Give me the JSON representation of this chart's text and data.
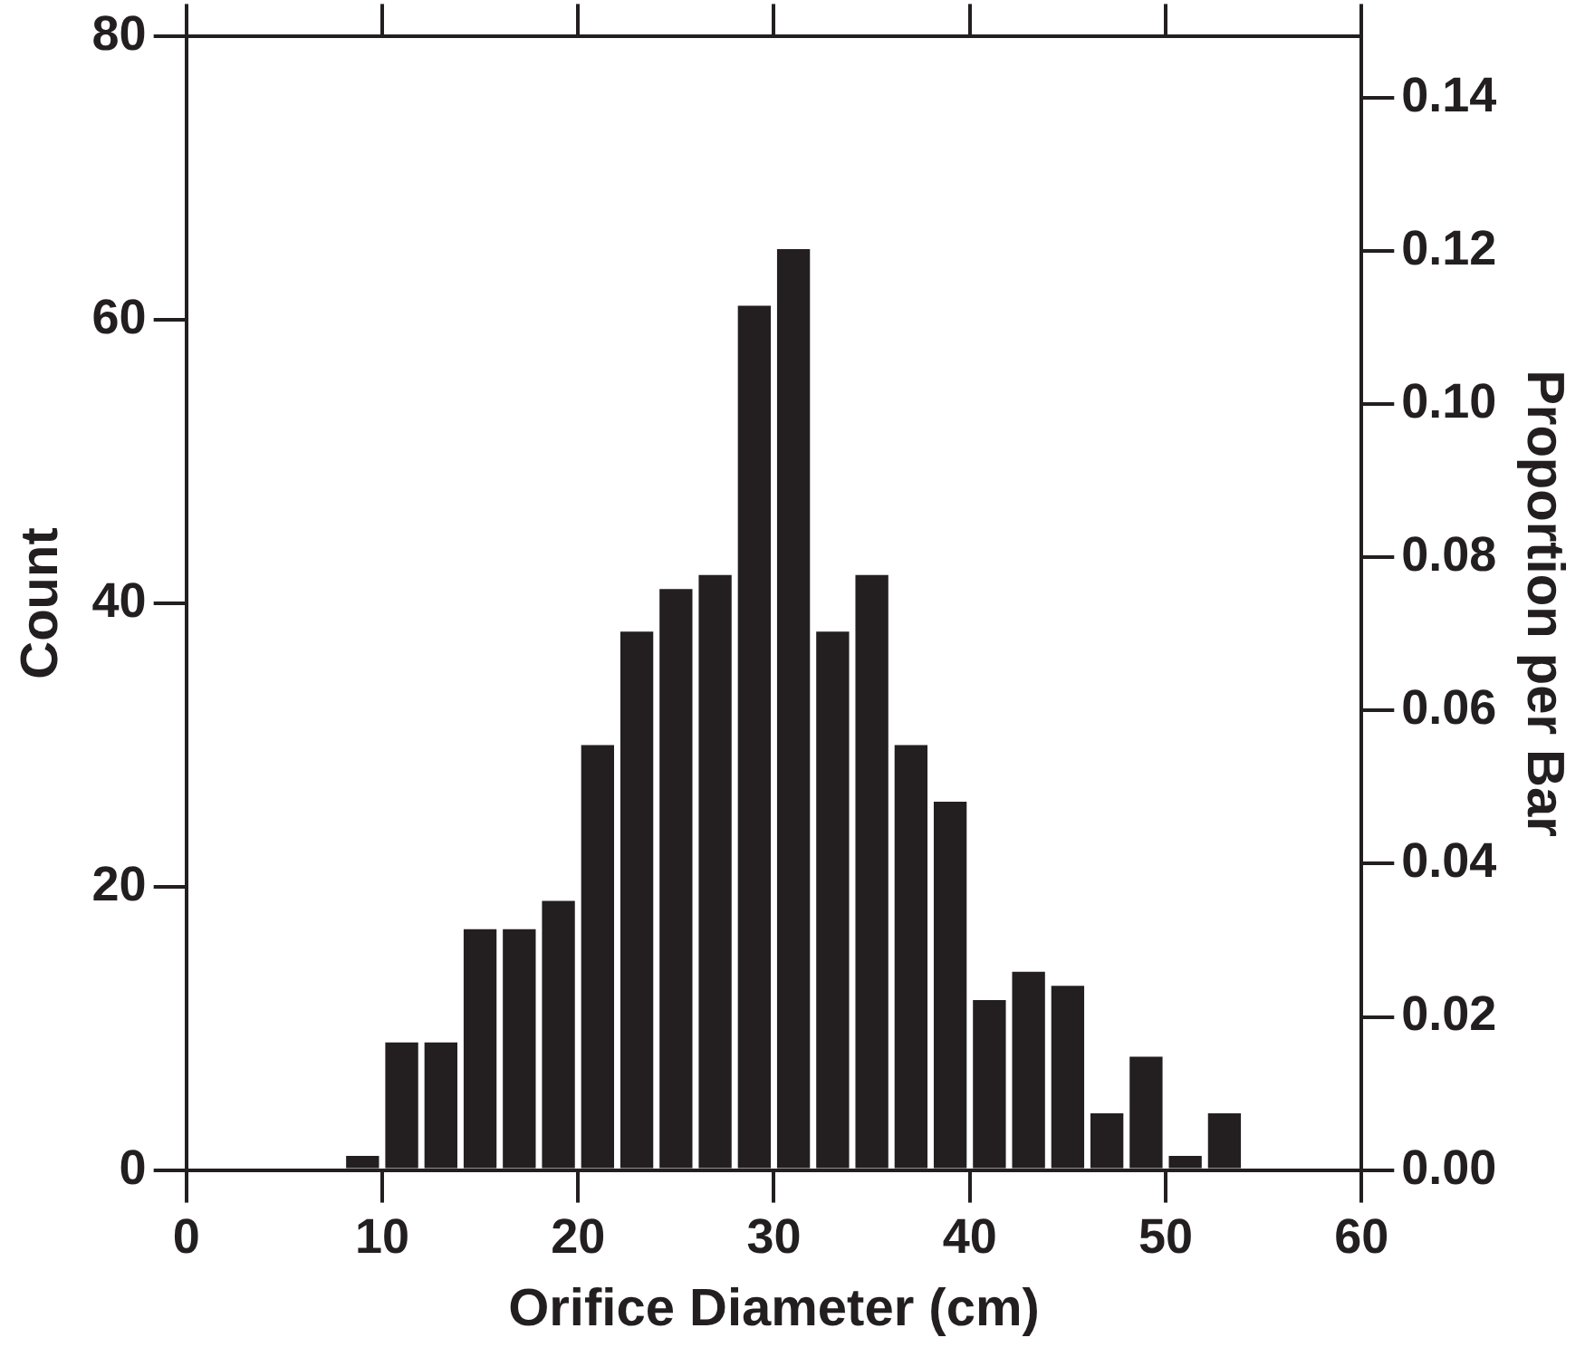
{
  "chart_data": {
    "type": "histogram",
    "xlabel": "Orifice Diameter (cm)",
    "ylabel": "Count",
    "y2label": "Proportion per Bar",
    "bins": [
      8,
      10,
      12,
      14,
      16,
      18,
      20,
      22,
      24,
      26,
      28,
      30,
      32,
      34,
      36,
      38,
      40,
      42,
      44,
      46,
      48,
      50,
      52,
      54
    ],
    "values": [
      1,
      9,
      9,
      17,
      17,
      19,
      30,
      38,
      41,
      42,
      61,
      65,
      38,
      42,
      30,
      26,
      12,
      14,
      13,
      4,
      8,
      1,
      4
    ],
    "color": "#231f20",
    "xlim": [
      0,
      60
    ],
    "xticks": [
      0,
      10,
      20,
      30,
      40,
      50,
      60
    ],
    "ylim": [
      0,
      80
    ],
    "yticks": [
      0,
      20,
      40,
      60,
      80
    ],
    "y2lim": [
      0,
      0.148
    ],
    "y2ticks": [
      {
        "value": 0,
        "label": "0.00"
      },
      {
        "value": 0.02,
        "label": "0.02"
      },
      {
        "value": 0.04,
        "label": "0.04"
      },
      {
        "value": 0.06,
        "label": "0.06"
      },
      {
        "value": 0.08,
        "label": "0.08"
      },
      {
        "value": 0.1,
        "label": "0.10"
      },
      {
        "value": 0.12,
        "label": "0.12"
      },
      {
        "value": 0.14,
        "label": "0.14"
      }
    ],
    "grid": false,
    "legend": false
  }
}
